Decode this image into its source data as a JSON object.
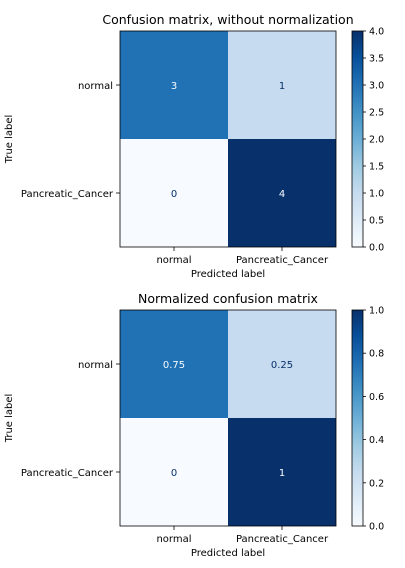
{
  "chart_data": [
    {
      "type": "heatmap",
      "title": "Confusion matrix, without normalization",
      "xlabel": "Predicted label",
      "ylabel": "True label",
      "x_categories": [
        "normal",
        "Pancreatic_Cancer"
      ],
      "y_categories": [
        "normal",
        "Pancreatic_Cancer"
      ],
      "values": [
        [
          3,
          1
        ],
        [
          0,
          4
        ]
      ],
      "cell_labels": [
        [
          "3",
          "1"
        ],
        [
          "0",
          "4"
        ]
      ],
      "colormap": "Blues",
      "colorbar": {
        "range": [
          0,
          4
        ],
        "ticks": [
          0.0,
          0.5,
          1.0,
          1.5,
          2.0,
          2.5,
          3.0,
          3.5,
          4.0
        ],
        "tick_labels": [
          "0.0",
          "0.5",
          "1.0",
          "1.5",
          "2.0",
          "2.5",
          "3.0",
          "3.5",
          "4.0"
        ]
      },
      "grid": false
    },
    {
      "type": "heatmap",
      "title": "Normalized confusion matrix",
      "xlabel": "Predicted label",
      "ylabel": "True label",
      "x_categories": [
        "normal",
        "Pancreatic_Cancer"
      ],
      "y_categories": [
        "normal",
        "Pancreatic_Cancer"
      ],
      "values": [
        [
          0.75,
          0.25
        ],
        [
          0,
          1
        ]
      ],
      "cell_labels": [
        [
          "0.75",
          "0.25"
        ],
        [
          "0",
          "1"
        ]
      ],
      "colormap": "Blues",
      "colorbar": {
        "range": [
          0,
          1
        ],
        "ticks": [
          0.0,
          0.2,
          0.4,
          0.6,
          0.8,
          1.0
        ],
        "tick_labels": [
          "0.0",
          "0.2",
          "0.4",
          "0.6",
          "0.8",
          "1.0"
        ]
      },
      "grid": false
    }
  ]
}
